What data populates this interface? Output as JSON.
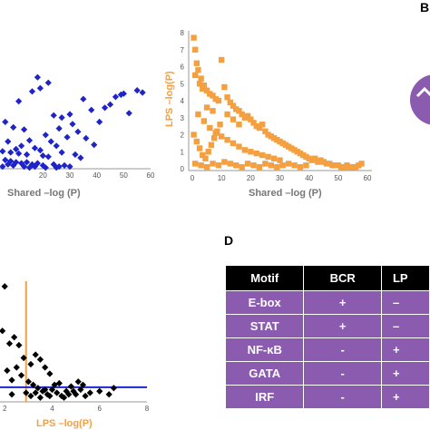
{
  "panels": {
    "B": "B",
    "D": "D"
  },
  "chart_data": [
    {
      "type": "scatter",
      "title": "",
      "xlabel": "Shared –log (P)",
      "ylabel": "",
      "xlim": [
        0,
        60
      ],
      "ylim": [
        0,
        10
      ],
      "xticks": [
        "20",
        "30",
        "40",
        "50",
        "60"
      ],
      "color": "#1f24c8",
      "marker": "diamond",
      "points": [
        [
          4,
          9.2
        ],
        [
          18,
          8.4
        ],
        [
          22,
          7.9
        ],
        [
          16,
          7.1
        ],
        [
          19,
          7.4
        ],
        [
          2,
          6.3
        ],
        [
          11,
          6.2
        ],
        [
          35,
          6.4
        ],
        [
          47,
          6.6
        ],
        [
          49,
          6.8
        ],
        [
          50,
          6.9
        ],
        [
          55,
          7.2
        ],
        [
          57,
          7.0
        ],
        [
          43,
          5.6
        ],
        [
          45,
          5.9
        ],
        [
          38,
          5.4
        ],
        [
          30,
          5.0
        ],
        [
          24,
          4.9
        ],
        [
          27,
          4.7
        ],
        [
          41,
          4.3
        ],
        [
          52,
          5.1
        ],
        [
          31,
          4.1
        ],
        [
          6,
          4.3
        ],
        [
          9,
          3.8
        ],
        [
          13,
          3.6
        ],
        [
          26,
          3.7
        ],
        [
          33,
          3.4
        ],
        [
          36,
          2.8
        ],
        [
          21,
          3.1
        ],
        [
          29,
          2.9
        ],
        [
          3,
          2.7
        ],
        [
          7,
          2.5
        ],
        [
          15,
          2.6
        ],
        [
          23,
          2.5
        ],
        [
          39,
          2.2
        ],
        [
          25,
          2.1
        ],
        [
          12,
          2.1
        ],
        [
          17,
          1.9
        ],
        [
          19,
          1.7
        ],
        [
          5,
          1.6
        ],
        [
          8,
          1.5
        ],
        [
          11,
          1.4
        ],
        [
          14,
          1.3
        ],
        [
          20,
          1.2
        ],
        [
          22,
          1.1
        ],
        [
          2,
          1.0
        ],
        [
          4,
          0.9
        ],
        [
          6,
          0.8
        ],
        [
          8,
          0.7
        ],
        [
          10,
          0.6
        ],
        [
          12,
          0.5
        ],
        [
          14,
          0.6
        ],
        [
          16,
          0.4
        ],
        [
          18,
          0.5
        ],
        [
          20,
          0.3
        ],
        [
          24,
          0.4
        ],
        [
          26,
          0.2
        ],
        [
          28,
          0.3
        ],
        [
          30,
          0.2
        ],
        [
          3,
          0.3
        ],
        [
          5,
          0.2
        ],
        [
          7,
          0.4
        ],
        [
          9,
          0.3
        ],
        [
          13,
          0.2
        ],
        [
          15,
          0.1
        ],
        [
          17,
          0.2
        ],
        [
          21,
          0.1
        ],
        [
          25,
          0.1
        ],
        [
          1,
          0.5
        ],
        [
          2,
          1.6
        ],
        [
          10,
          1.8
        ],
        [
          27,
          1.5
        ],
        [
          32,
          1.3
        ],
        [
          34,
          1.0
        ]
      ]
    },
    {
      "type": "scatter",
      "title": "",
      "xlabel": "Shared –log (P)",
      "ylabel": "LPS –log(P)",
      "xlim": [
        0,
        60
      ],
      "ylim": [
        0,
        8
      ],
      "xticks": [
        "0",
        "10",
        "20",
        "30",
        "40",
        "50",
        "60"
      ],
      "yticks": [
        "0",
        "1",
        "2",
        "3",
        "4",
        "5",
        "6",
        "7",
        "8"
      ],
      "color": "#f4a040",
      "marker": "square",
      "points": [
        [
          0.5,
          7.7
        ],
        [
          1,
          7.0
        ],
        [
          1.5,
          6.2
        ],
        [
          2,
          5.8
        ],
        [
          1,
          5.5
        ],
        [
          3,
          5.3
        ],
        [
          2.5,
          5.0
        ],
        [
          4,
          4.9
        ],
        [
          3.5,
          4.7
        ],
        [
          10,
          6.4
        ],
        [
          5,
          4.6
        ],
        [
          6,
          4.4
        ],
        [
          7,
          4.3
        ],
        [
          8,
          4.1
        ],
        [
          9,
          4.0
        ],
        [
          11,
          4.8
        ],
        [
          12,
          4.2
        ],
        [
          13,
          3.9
        ],
        [
          14,
          3.7
        ],
        [
          15,
          3.5
        ],
        [
          16,
          3.4
        ],
        [
          17,
          3.2
        ],
        [
          18,
          3.0
        ],
        [
          19,
          3.1
        ],
        [
          20,
          2.9
        ],
        [
          21,
          2.7
        ],
        [
          22,
          2.5
        ],
        [
          23,
          2.4
        ],
        [
          24,
          2.6
        ],
        [
          25,
          2.2
        ],
        [
          26,
          2.0
        ],
        [
          27,
          1.9
        ],
        [
          28,
          1.8
        ],
        [
          29,
          1.7
        ],
        [
          30,
          1.6
        ],
        [
          31,
          1.5
        ],
        [
          32,
          1.4
        ],
        [
          33,
          1.3
        ],
        [
          34,
          1.2
        ],
        [
          35,
          1.1
        ],
        [
          36,
          1.0
        ],
        [
          37,
          0.9
        ],
        [
          38,
          0.8
        ],
        [
          39,
          0.7
        ],
        [
          40,
          0.6
        ],
        [
          41,
          0.5
        ],
        [
          42,
          0.6
        ],
        [
          43,
          0.4
        ],
        [
          44,
          0.5
        ],
        [
          45,
          0.4
        ],
        [
          46,
          0.3
        ],
        [
          47,
          0.3
        ],
        [
          48,
          0.2
        ],
        [
          49,
          0.2
        ],
        [
          50,
          0.2
        ],
        [
          51,
          0.1
        ],
        [
          52,
          0.1
        ],
        [
          53,
          0.2
        ],
        [
          54,
          0.1
        ],
        [
          55,
          0.1
        ],
        [
          56,
          0.1
        ],
        [
          57,
          0.2
        ],
        [
          58,
          0.3
        ],
        [
          2,
          3.2
        ],
        [
          4,
          2.8
        ],
        [
          6,
          2.4
        ],
        [
          8,
          2.1
        ],
        [
          10,
          1.9
        ],
        [
          12,
          1.7
        ],
        [
          14,
          1.5
        ],
        [
          16,
          1.3
        ],
        [
          18,
          1.1
        ],
        [
          20,
          1.0
        ],
        [
          22,
          0.9
        ],
        [
          24,
          0.8
        ],
        [
          26,
          0.7
        ],
        [
          28,
          0.6
        ],
        [
          30,
          0.5
        ],
        [
          1,
          0.3
        ],
        [
          3,
          0.2
        ],
        [
          5,
          0.1
        ],
        [
          7,
          0.3
        ],
        [
          9,
          0.2
        ],
        [
          11,
          0.4
        ],
        [
          13,
          0.3
        ],
        [
          15,
          0.2
        ],
        [
          17,
          0.1
        ],
        [
          19,
          0.3
        ],
        [
          21,
          0.2
        ],
        [
          23,
          0.1
        ],
        [
          25,
          0.3
        ],
        [
          27,
          0.2
        ],
        [
          29,
          0.1
        ],
        [
          31,
          0.2
        ],
        [
          33,
          0.3
        ],
        [
          35,
          0.2
        ],
        [
          37,
          0.1
        ],
        [
          39,
          0.2
        ],
        [
          0.5,
          2.0
        ],
        [
          1.5,
          1.6
        ],
        [
          2.5,
          1.2
        ],
        [
          3.5,
          0.8
        ],
        [
          4.5,
          0.6
        ],
        [
          5.5,
          1.0
        ],
        [
          6.5,
          1.4
        ],
        [
          7.5,
          1.8
        ],
        [
          8.5,
          2.2
        ],
        [
          9.5,
          2.6
        ],
        [
          12,
          3.2
        ],
        [
          14,
          2.9
        ],
        [
          16,
          2.6
        ],
        [
          5,
          3.6
        ],
        [
          7,
          3.4
        ]
      ]
    },
    {
      "type": "scatter",
      "title": "",
      "xlabel": "LPS –log(P)",
      "ylabel": "",
      "xlim": [
        1.8,
        8
      ],
      "ylim": [
        0,
        8
      ],
      "xticks": [
        "2",
        "4",
        "6",
        "8"
      ],
      "color": "#000000",
      "marker": "diamond",
      "vline": {
        "x": 2.9,
        "color": "#f4a040"
      },
      "hline": {
        "y": 0.75,
        "color": "#1f24c8"
      },
      "points": [
        [
          2.0,
          7.1
        ],
        [
          1.9,
          4.3
        ],
        [
          2.2,
          3.5
        ],
        [
          2.4,
          3.9
        ],
        [
          2.6,
          3.4
        ],
        [
          2.8,
          2.6
        ],
        [
          2.5,
          2.0
        ],
        [
          2.1,
          1.8
        ],
        [
          2.7,
          1.5
        ],
        [
          2.3,
          1.2
        ],
        [
          3.1,
          2.2
        ],
        [
          3.3,
          2.8
        ],
        [
          3.5,
          2.5
        ],
        [
          3.7,
          2.0
        ],
        [
          3.9,
          1.6
        ],
        [
          3.0,
          1.1
        ],
        [
          3.2,
          0.9
        ],
        [
          3.4,
          0.7
        ],
        [
          3.6,
          0.5
        ],
        [
          3.8,
          0.3
        ],
        [
          4.0,
          0.6
        ],
        [
          4.2,
          0.4
        ],
        [
          4.4,
          0.2
        ],
        [
          4.6,
          0.5
        ],
        [
          4.8,
          0.8
        ],
        [
          5.0,
          0.3
        ],
        [
          5.2,
          0.6
        ],
        [
          5.4,
          0.2
        ],
        [
          5.6,
          0.4
        ],
        [
          6.0,
          0.5
        ],
        [
          6.4,
          0.3
        ],
        [
          6.6,
          0.7
        ],
        [
          3.1,
          0.2
        ],
        [
          3.3,
          0.4
        ],
        [
          3.5,
          0.1
        ],
        [
          3.7,
          0.6
        ],
        [
          3.9,
          0.2
        ],
        [
          4.1,
          0.9
        ],
        [
          4.3,
          1.0
        ],
        [
          4.5,
          0.1
        ],
        [
          4.7,
          0.3
        ],
        [
          4.9,
          0.5
        ],
        [
          5.1,
          1.1
        ],
        [
          5.3,
          0.9
        ],
        [
          2.9,
          0.4
        ],
        [
          2.3,
          0.3
        ]
      ]
    }
  ],
  "motif_table": {
    "headers": [
      "Motif",
      "BCR",
      "LP"
    ],
    "rows": [
      [
        "E-box",
        "+",
        "–"
      ],
      [
        "STAT",
        "+",
        "–"
      ],
      [
        "NF-κB",
        "-",
        "+"
      ],
      [
        "GATA",
        "-",
        "+"
      ],
      [
        "IRF",
        "-",
        "+"
      ]
    ]
  },
  "colors": {
    "blue": "#1f24c8",
    "orange": "#f4a040",
    "purple": "#8b5bb0",
    "table_header": "#000000",
    "circle": "#8b5bb0"
  }
}
